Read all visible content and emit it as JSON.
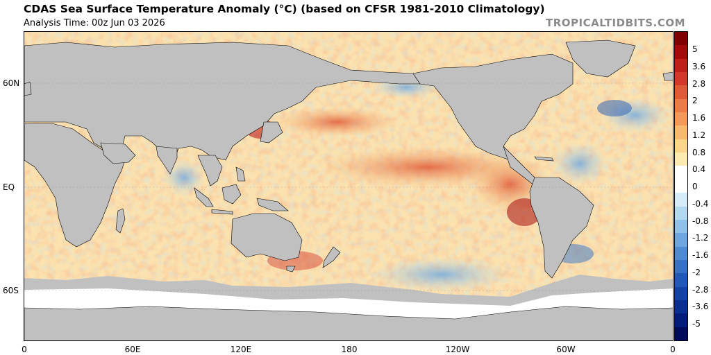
{
  "header": {
    "title": "CDAS Sea Surface Temperature Anomaly (°C) (based on CFSR 1981-2010 Climatology)",
    "analysis_time": "Analysis Time: 00z Jun 03 2026",
    "brand": "TROPICALTIDBITS.COM"
  },
  "map": {
    "lat_labels": [
      "60N",
      "EQ",
      "60S"
    ],
    "lon_labels": [
      "0",
      "60E",
      "120E",
      "180",
      "120W",
      "60W",
      "0"
    ],
    "land_color": "#c0c0c0",
    "ice_color": "#ffffff"
  },
  "colorbar": {
    "labels": [
      "5",
      "3.6",
      "2.8",
      "2",
      "1.6",
      "1.2",
      "0.8",
      "0.4",
      "0",
      "-0.4",
      "-0.8",
      "-1.2",
      "-1.6",
      "-2",
      "-2.8",
      "-3.6",
      "-5"
    ],
    "colors": [
      "#7f0000",
      "#a50a0a",
      "#c0201a",
      "#d3382a",
      "#e05a3a",
      "#ea7c4c",
      "#f29a5e",
      "#f7b874",
      "#fbd48e",
      "#fde9b2",
      "#ffffff",
      "#ffffff",
      "#d6ecfa",
      "#b3d8f2",
      "#8fc1ea",
      "#6ea7df",
      "#4f8bd3",
      "#3572c6",
      "#2059b6",
      "#1343a3",
      "#0a2f8f",
      "#031c78",
      "#000a5a"
    ]
  }
}
